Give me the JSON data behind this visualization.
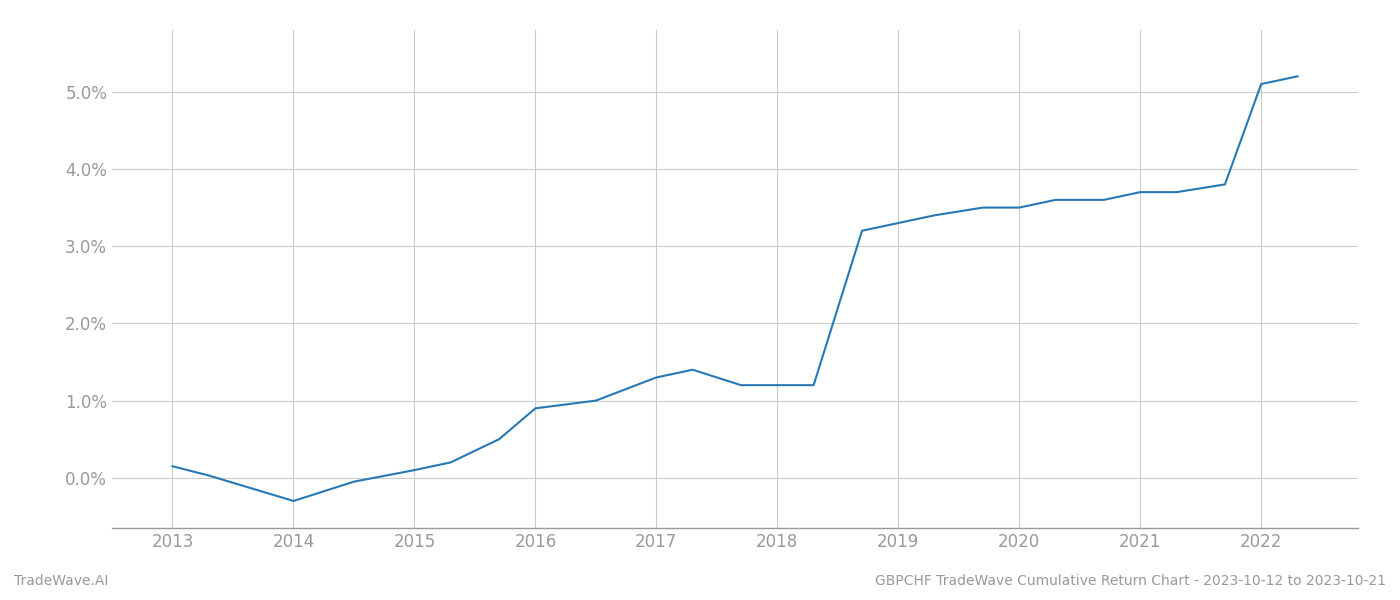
{
  "x_years": [
    2013.0,
    2013.3,
    2014.0,
    2014.5,
    2015.0,
    2015.3,
    2015.7,
    2016.0,
    2016.5,
    2017.0,
    2017.3,
    2017.7,
    2018.0,
    2018.3,
    2018.7,
    2019.0,
    2019.3,
    2019.7,
    2020.0,
    2020.3,
    2020.7,
    2021.0,
    2021.3,
    2021.7,
    2022.0,
    2022.3
  ],
  "y_values": [
    0.0015,
    0.0003,
    -0.003,
    -0.0005,
    0.001,
    0.002,
    0.005,
    0.009,
    0.01,
    0.013,
    0.014,
    0.012,
    0.012,
    0.012,
    0.032,
    0.033,
    0.034,
    0.035,
    0.035,
    0.036,
    0.036,
    0.037,
    0.037,
    0.038,
    0.051,
    0.052
  ],
  "line_color": "#2878b5",
  "background_color": "#ffffff",
  "grid_color": "#cccccc",
  "footer_left": "TradeWave.AI",
  "footer_right": "GBPCHF TradeWave Cumulative Return Chart - 2023-10-12 to 2023-10-21",
  "xlim": [
    2012.5,
    2022.8
  ],
  "ylim": [
    -0.0065,
    0.058
  ],
  "xticks": [
    2013,
    2014,
    2015,
    2016,
    2017,
    2018,
    2019,
    2020,
    2021,
    2022
  ],
  "yticks": [
    0.0,
    0.01,
    0.02,
    0.03,
    0.04,
    0.05
  ],
  "line_width": 1.5,
  "footer_fontsize": 10,
  "tick_fontsize": 12,
  "tick_color": "#999999",
  "axis_color": "#999999"
}
